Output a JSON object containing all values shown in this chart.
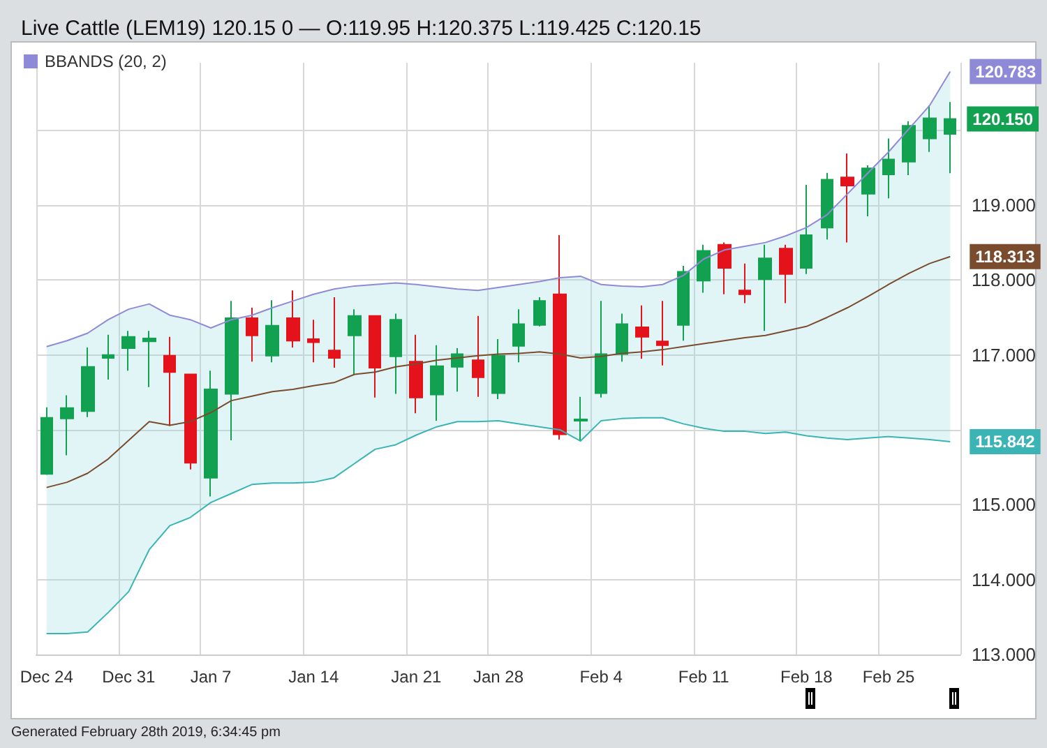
{
  "chart_data": {
    "type": "candlestick",
    "title": "Live Cattle (LEM19) 120.15 0 — O:119.95 H:120.375 L:119.425 C:120.15",
    "categories": [
      "Dec 24",
      null,
      null,
      null,
      "Dec 31",
      null,
      null,
      null,
      "Jan 7",
      null,
      null,
      null,
      null,
      "Jan 14",
      null,
      null,
      null,
      null,
      "Jan 21",
      null,
      null,
      null,
      "Jan 28",
      null,
      null,
      null,
      null,
      "Feb 4",
      null,
      null,
      null,
      null,
      "Feb 11",
      null,
      null,
      null,
      null,
      "Feb 18",
      null,
      null,
      null,
      "Feb 25",
      null,
      null,
      null
    ],
    "series": [
      {
        "value_labels": [
          null,
          null,
          null,
          null,
          null,
          null,
          null,
          null,
          null,
          null,
          null,
          null,
          null,
          null,
          null,
          null,
          null,
          null,
          null,
          null,
          null,
          null,
          null,
          null,
          null,
          null,
          null,
          null,
          null,
          null,
          null,
          null,
          null,
          null,
          null,
          null,
          null,
          null,
          null,
          null,
          null,
          null,
          null,
          null,
          "120.150"
        ],
        "colors": [
          "#12a150",
          "#12a150",
          "#12a150",
          "#12a150",
          "#12a150",
          "#12a150",
          "#e3121b",
          "#e3121b",
          "#12a150",
          "#12a150",
          "#e3121b",
          "#12a150",
          "#e3121b",
          "#e3121b",
          "#e3121b",
          "#12a150",
          "#e3121b",
          "#12a150",
          "#e3121b",
          "#12a150",
          "#12a150",
          "#e3121b",
          "#12a150",
          "#12a150",
          "#12a150",
          "#e3121b",
          "#12a150",
          "#12a150",
          "#12a150",
          "#e3121b",
          "#e3121b",
          "#12a150",
          "#12a150",
          "#e3121b",
          "#e3121b",
          "#12a150",
          "#e3121b",
          "#12a150",
          "#12a150",
          "#e3121b",
          "#12a150",
          "#12a150",
          "#12a150",
          "#12a150",
          "#12a150"
        ],
        "ohlc": [
          [
            115.41,
            116.3,
            115.4,
            116.16
          ],
          [
            116.15,
            116.46,
            115.66,
            116.29
          ],
          [
            116.25,
            117.1,
            116.17,
            116.84
          ],
          [
            116.96,
            117.27,
            116.67,
            117.0
          ],
          [
            117.09,
            117.32,
            116.79,
            117.24
          ],
          [
            117.18,
            117.32,
            116.57,
            117.22
          ],
          [
            116.99,
            117.24,
            116.05,
            116.77
          ],
          [
            116.74,
            116.75,
            115.47,
            115.56
          ],
          [
            115.36,
            116.79,
            115.11,
            116.54
          ],
          [
            116.48,
            117.72,
            115.86,
            117.49
          ],
          [
            117.49,
            117.63,
            116.91,
            117.26
          ],
          [
            116.99,
            117.73,
            116.9,
            117.39
          ],
          [
            117.49,
            117.86,
            117.1,
            117.19
          ],
          [
            117.21,
            117.47,
            116.9,
            117.17
          ],
          [
            117.06,
            117.77,
            116.83,
            116.96
          ],
          [
            117.26,
            117.61,
            116.73,
            117.52
          ],
          [
            117.52,
            117.53,
            116.43,
            116.83
          ],
          [
            116.98,
            117.55,
            116.48,
            117.47
          ],
          [
            116.91,
            117.27,
            116.22,
            116.43
          ],
          [
            116.47,
            117.13,
            116.12,
            116.85
          ],
          [
            116.84,
            117.09,
            116.51,
            117.01
          ],
          [
            116.93,
            117.52,
            116.44,
            116.7
          ],
          [
            116.49,
            117.21,
            116.41,
            116.99
          ],
          [
            117.12,
            117.61,
            116.9,
            117.41
          ],
          [
            117.4,
            117.77,
            117.38,
            117.72
          ],
          [
            117.81,
            118.6,
            115.87,
            115.94
          ],
          [
            116.12,
            116.44,
            115.85,
            116.14
          ],
          [
            116.49,
            117.72,
            116.43,
            117.01
          ],
          [
            117.01,
            117.55,
            116.91,
            117.41
          ],
          [
            117.37,
            117.66,
            116.95,
            117.24
          ],
          [
            117.18,
            117.72,
            116.86,
            117.13
          ],
          [
            117.4,
            118.19,
            117.19,
            118.11
          ],
          [
            117.99,
            118.47,
            117.83,
            118.39
          ],
          [
            118.47,
            118.5,
            117.81,
            118.16
          ],
          [
            117.86,
            118.22,
            117.69,
            117.81
          ],
          [
            118.01,
            118.47,
            117.32,
            118.29
          ],
          [
            118.42,
            118.47,
            117.69,
            118.08
          ],
          [
            118.16,
            119.27,
            118.08,
            118.6
          ],
          [
            118.7,
            119.43,
            118.54,
            119.34
          ],
          [
            119.37,
            119.69,
            118.5,
            119.26
          ],
          [
            119.15,
            119.53,
            118.85,
            119.49
          ],
          [
            119.41,
            119.89,
            119.09,
            119.61
          ],
          [
            119.58,
            120.12,
            119.4,
            120.06
          ],
          [
            119.89,
            120.33,
            119.71,
            120.16
          ],
          [
            119.95,
            120.375,
            119.425,
            120.15
          ]
        ]
      },
      {
        "type": "line",
        "name": "BBANDS (20, 2)",
        "color": "#8f8ad8",
        "values": [
          117.11,
          117.19,
          117.29,
          117.47,
          117.61,
          117.68,
          117.53,
          117.47,
          117.36,
          117.47,
          117.53,
          117.63,
          117.72,
          117.81,
          117.88,
          117.92,
          117.94,
          117.96,
          117.94,
          117.91,
          117.88,
          117.86,
          117.9,
          117.94,
          117.98,
          118.03,
          118.05,
          117.94,
          117.92,
          117.91,
          117.94,
          118.06,
          118.28,
          118.4,
          118.45,
          118.5,
          118.59,
          118.7,
          118.87,
          119.15,
          119.43,
          119.71,
          120.02,
          120.33,
          120.783
        ],
        "value_labels": [
          null,
          null,
          null,
          null,
          null,
          null,
          null,
          null,
          null,
          null,
          null,
          null,
          null,
          null,
          null,
          null,
          null,
          null,
          null,
          null,
          null,
          null,
          null,
          null,
          null,
          null,
          null,
          null,
          null,
          null,
          null,
          null,
          null,
          null,
          null,
          null,
          null,
          null,
          null,
          null,
          null,
          null,
          null,
          null,
          "120.783"
        ]
      },
      {
        "type": "line",
        "color": "#7a4b2c",
        "upper": [
          117.11,
          117.19,
          117.29,
          117.47,
          117.61,
          117.68,
          117.53,
          117.47,
          117.36,
          117.47,
          117.53,
          117.63,
          117.72,
          117.81,
          117.88,
          117.92,
          117.94,
          117.96,
          117.94,
          117.91,
          117.88,
          117.86,
          117.9,
          117.94,
          117.98,
          118.03,
          118.05,
          117.94,
          117.92,
          117.91,
          117.94,
          118.06,
          118.28,
          118.4,
          118.45,
          118.5,
          118.59,
          118.7,
          118.87,
          119.15,
          119.43,
          119.71,
          120.02,
          120.33,
          120.783
        ],
        "lower": [
          113.28,
          113.28,
          113.3,
          113.56,
          113.84,
          114.4,
          114.72,
          114.83,
          115.03,
          115.15,
          115.27,
          115.29,
          115.29,
          115.3,
          115.36,
          115.55,
          115.74,
          115.8,
          115.93,
          116.04,
          116.11,
          116.11,
          116.12,
          116.08,
          116.04,
          116.0,
          115.85,
          116.12,
          116.15,
          116.16,
          116.16,
          116.08,
          116.02,
          115.98,
          115.98,
          115.95,
          115.97,
          115.92,
          115.89,
          115.87,
          115.89,
          115.91,
          115.89,
          115.87,
          115.842
        ],
        "values": [
          115.23,
          115.3,
          115.42,
          115.61,
          115.86,
          116.11,
          116.06,
          116.11,
          116.23,
          116.39,
          116.45,
          116.51,
          116.54,
          116.59,
          116.63,
          116.74,
          116.77,
          116.84,
          116.88,
          116.93,
          116.96,
          116.99,
          117.01,
          117.02,
          117.04,
          117.01,
          116.96,
          116.98,
          117.02,
          117.04,
          117.07,
          117.11,
          117.15,
          117.19,
          117.23,
          117.26,
          117.32,
          117.38,
          117.5,
          117.63,
          117.78,
          117.94,
          118.09,
          118.22,
          118.313
        ],
        "value_labels": [
          null,
          null,
          null,
          null,
          null,
          null,
          null,
          null,
          null,
          null,
          null,
          null,
          null,
          null,
          null,
          null,
          null,
          null,
          null,
          null,
          null,
          null,
          null,
          null,
          null,
          null,
          null,
          null,
          null,
          null,
          null,
          null,
          null,
          null,
          null,
          null,
          null,
          null,
          null,
          null,
          null,
          null,
          null,
          null,
          "118.313"
        ]
      },
      {
        "type": "line",
        "color": "#3ab4b4",
        "values": [
          113.28,
          113.28,
          113.3,
          113.56,
          113.84,
          114.4,
          114.72,
          114.83,
          115.03,
          115.15,
          115.27,
          115.29,
          115.29,
          115.3,
          115.36,
          115.55,
          115.74,
          115.8,
          115.93,
          116.04,
          116.11,
          116.11,
          116.12,
          116.08,
          116.04,
          116.0,
          115.85,
          116.12,
          116.15,
          116.16,
          116.16,
          116.08,
          116.02,
          115.98,
          115.98,
          115.95,
          115.97,
          115.92,
          115.89,
          115.87,
          115.89,
          115.91,
          115.89,
          115.87,
          115.842
        ],
        "value_labels": [
          null,
          null,
          null,
          null,
          null,
          null,
          null,
          null,
          null,
          null,
          null,
          null,
          null,
          null,
          null,
          null,
          null,
          null,
          null,
          null,
          null,
          null,
          null,
          null,
          null,
          null,
          null,
          null,
          null,
          null,
          null,
          null,
          null,
          null,
          null,
          null,
          null,
          null,
          null,
          null,
          null,
          null,
          null,
          null,
          "115.842"
        ]
      }
    ],
    "ylim": [
      113,
      120.9
    ],
    "yticks": [
      {
        "value": 113,
        "label": "113.000"
      },
      {
        "value": 114,
        "label": "114.000"
      },
      {
        "value": 115,
        "label": "115.000"
      },
      {
        "value": 116,
        "label": null
      },
      {
        "value": 117,
        "label": "117.000"
      },
      {
        "value": 118,
        "label": "118.000"
      },
      {
        "value": 119,
        "label": "119.000"
      },
      {
        "value": 120,
        "label": null
      }
    ],
    "grid": true,
    "legend": "top left",
    "annotations": [
      "Generated February 28th 2019, 6:34:45 pm"
    ]
  }
}
